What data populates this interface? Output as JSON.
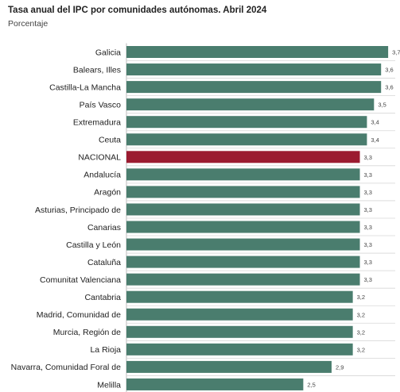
{
  "chart_data": {
    "type": "bar",
    "orientation": "horizontal",
    "title": "Tasa anual del IPC por comunidades autónomas. Abril 2024",
    "subtitle": "Porcentaje",
    "categories": [
      "Galicia",
      "Balears, Illes",
      "Castilla-La Mancha",
      "País Vasco",
      "Extremadura",
      "Ceuta",
      "NACIONAL",
      "Andalucía",
      "Aragón",
      "Asturias, Principado de",
      "Canarias",
      "Castilla y León",
      "Cataluña",
      "Comunitat Valenciana",
      "Cantabria",
      "Madrid, Comunidad de",
      "Murcia, Región de",
      "La Rioja",
      "Navarra, Comunidad Foral de",
      "Melilla"
    ],
    "values": [
      3.7,
      3.6,
      3.6,
      3.5,
      3.4,
      3.4,
      3.3,
      3.3,
      3.3,
      3.3,
      3.3,
      3.3,
      3.3,
      3.3,
      3.2,
      3.2,
      3.2,
      3.2,
      2.9,
      2.5
    ],
    "value_labels": [
      "3,7",
      "3,6",
      "3,6",
      "3,5",
      "3,4",
      "3,4",
      "3,3",
      "3,3",
      "3,3",
      "3,3",
      "3,3",
      "3,3",
      "3,3",
      "3,3",
      "3,2",
      "3,2",
      "3,2",
      "3,2",
      "2,9",
      "2,5"
    ],
    "highlight_category": "NACIONAL",
    "colors": {
      "bar": "#4a7d6e",
      "highlight": "#9b1b30",
      "grid": "#d6d6d6",
      "axis": "#bbbbbb"
    },
    "grid": true
  }
}
